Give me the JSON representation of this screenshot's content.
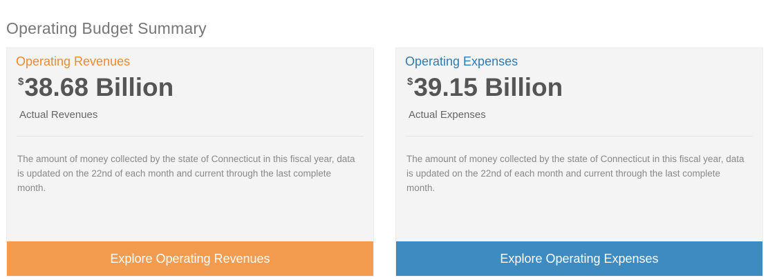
{
  "page_title": "Operating Budget Summary",
  "colors": {
    "revenues_accent": "#f39c50",
    "revenues_title": "#ee8a2f",
    "expenses_accent": "#3d8bc0",
    "expenses_title": "#2f7ab0"
  },
  "cards": [
    {
      "title": "Operating Revenues",
      "currency": "$",
      "amount": "38.68 Billion",
      "subtitle": "Actual Revenues",
      "description": "The amount of money collected by the state of Connecticut in this fiscal year, data is updated on the 22nd of each month and current through the last complete month.",
      "button_label": "Explore Operating Revenues"
    },
    {
      "title": "Operating Expenses",
      "currency": "$",
      "amount": "39.15 Billion",
      "subtitle": "Actual Expenses",
      "description": "The amount of money collected by the state of Connecticut in this fiscal year, data is updated on the 22nd of each month and current through the last complete month.",
      "button_label": "Explore Operating Expenses"
    }
  ]
}
